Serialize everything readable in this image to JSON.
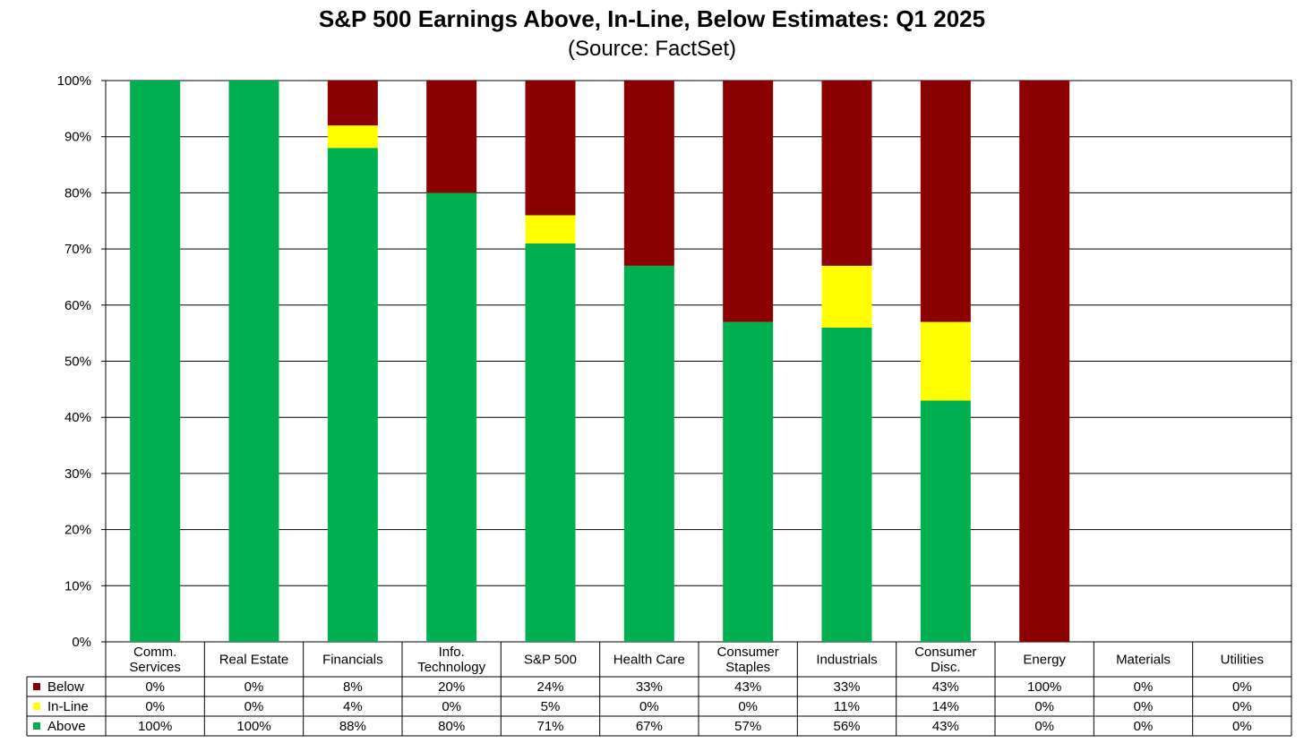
{
  "chart_data": {
    "type": "bar",
    "stacked": true,
    "title": "S&P 500 Earnings Above, In-Line, Below Estimates: Q1 2025",
    "subtitle": "(Source: FactSet)",
    "categories": [
      [
        "Comm.",
        "Services"
      ],
      [
        "Real Estate"
      ],
      [
        "Financials"
      ],
      [
        "Info.",
        "Technology"
      ],
      [
        "S&P 500"
      ],
      [
        "Health Care"
      ],
      [
        "Consumer",
        "Staples"
      ],
      [
        "Industrials"
      ],
      [
        "Consumer",
        "Disc."
      ],
      [
        "Energy"
      ],
      [
        "Materials"
      ],
      [
        "Utilities"
      ]
    ],
    "series": [
      {
        "name": "Below",
        "color": "#8B0000",
        "values": [
          0,
          0,
          8,
          20,
          24,
          33,
          43,
          33,
          43,
          100,
          0,
          0
        ],
        "labels": [
          "0%",
          "0%",
          "8%",
          "20%",
          "24%",
          "33%",
          "43%",
          "33%",
          "43%",
          "100%",
          "0%",
          "0%"
        ]
      },
      {
        "name": "In-Line",
        "color": "#FFFF00",
        "values": [
          0,
          0,
          4,
          0,
          5,
          0,
          0,
          11,
          14,
          0,
          0,
          0
        ],
        "labels": [
          "0%",
          "0%",
          "4%",
          "0%",
          "5%",
          "0%",
          "0%",
          "11%",
          "14%",
          "0%",
          "0%",
          "0%"
        ]
      },
      {
        "name": "Above",
        "color": "#00B050",
        "values": [
          100,
          100,
          88,
          80,
          71,
          67,
          57,
          56,
          43,
          0,
          0,
          0
        ],
        "labels": [
          "100%",
          "100%",
          "88%",
          "80%",
          "71%",
          "67%",
          "57%",
          "56%",
          "43%",
          "0%",
          "0%",
          "0%"
        ]
      }
    ],
    "stack_order_bottom_to_top": [
      "Above",
      "In-Line",
      "Below"
    ],
    "ylim": [
      0,
      100
    ],
    "yticks": [
      "0%",
      "10%",
      "20%",
      "30%",
      "40%",
      "50%",
      "60%",
      "70%",
      "80%",
      "90%",
      "100%"
    ],
    "grid": true,
    "legend": "data-table"
  }
}
